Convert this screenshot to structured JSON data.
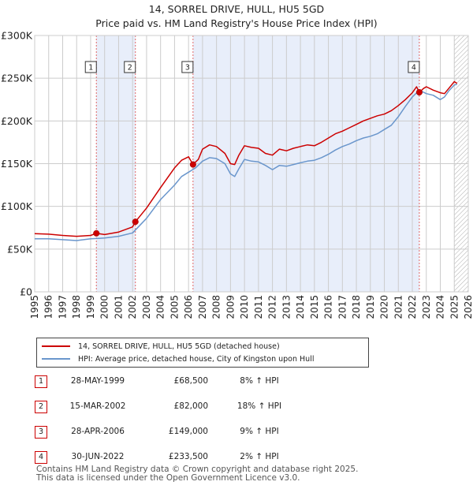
{
  "header": {
    "title": "14, SORREL DRIVE, HULL, HU5 5GD",
    "subtitle": "Price paid vs. HM Land Registry's House Price Index (HPI)"
  },
  "colors": {
    "property_line": "#cc0000",
    "hpi_line": "#6a96cc",
    "shade": "#e8eefa",
    "grid": "#cccccc",
    "marker_line": "#e06666",
    "hatch": "#999999"
  },
  "chart_data": {
    "type": "line",
    "title": "14, SORREL DRIVE, HULL, HU5 5GD",
    "subtitle": "Price paid vs. HM Land Registry's House Price Index (HPI)",
    "xlabel": "",
    "ylabel": "",
    "xlim": [
      1995,
      2026
    ],
    "ylim": [
      0,
      300000
    ],
    "grid": true,
    "x_ticks": [
      1995,
      1996,
      1997,
      1998,
      1999,
      2000,
      2001,
      2002,
      2003,
      2004,
      2005,
      2006,
      2007,
      2008,
      2009,
      2010,
      2011,
      2012,
      2013,
      2014,
      2015,
      2016,
      2017,
      2018,
      2019,
      2020,
      2021,
      2022,
      2023,
      2024,
      2025,
      2026
    ],
    "x_tick_labels": [
      "1995",
      "1996",
      "1997",
      "1998",
      "1999",
      "2000",
      "2001",
      "2002",
      "2003",
      "2004",
      "2005",
      "2006",
      "2007",
      "2008",
      "2009",
      "2010",
      "2011",
      "2012",
      "2013",
      "2014",
      "2015",
      "2016",
      "2017",
      "2018",
      "2019",
      "2020",
      "2021",
      "2022",
      "2023",
      "2024",
      "2025",
      "2026"
    ],
    "y_ticks": [
      0,
      50000,
      100000,
      150000,
      200000,
      250000,
      300000
    ],
    "y_tick_labels": [
      "£0",
      "£50K",
      "£100K",
      "£150K",
      "£200K",
      "£250K",
      "£300K"
    ],
    "shaded_ranges": [
      [
        1999.41,
        2002.2
      ],
      [
        2006.32,
        2022.5
      ]
    ],
    "forecast_start": 2025.0,
    "series": [
      {
        "name": "14, SORREL DRIVE, HULL, HU5 5GD (detached house)",
        "x": [
          1995.0,
          1996.0,
          1997.0,
          1998.0,
          1999.0,
          1999.41,
          2000.0,
          2001.0,
          2002.0,
          2002.2,
          2003.0,
          2004.0,
          2005.0,
          2005.5,
          2006.0,
          2006.32,
          2006.7,
          2007.0,
          2007.5,
          2008.0,
          2008.6,
          2009.0,
          2009.3,
          2009.6,
          2010.0,
          2010.5,
          2011.0,
          2011.5,
          2012.0,
          2012.5,
          2013.0,
          2013.5,
          2014.0,
          2014.5,
          2015.0,
          2015.5,
          2016.0,
          2016.5,
          2017.0,
          2017.5,
          2018.0,
          2018.5,
          2019.0,
          2019.5,
          2020.0,
          2020.5,
          2021.0,
          2021.5,
          2022.0,
          2022.3,
          2022.5,
          2022.8,
          2023.0,
          2023.5,
          2024.0,
          2024.3,
          2024.6,
          2025.0,
          2025.2
        ],
        "values": [
          68000,
          67500,
          66000,
          65000,
          66000,
          68500,
          67000,
          70000,
          76000,
          82000,
          98000,
          122000,
          145000,
          154000,
          158000,
          149000,
          155000,
          167000,
          172000,
          170000,
          162000,
          150000,
          149000,
          160000,
          171000,
          169000,
          168000,
          162000,
          160000,
          167000,
          165000,
          168000,
          170000,
          172000,
          171000,
          175000,
          180000,
          185000,
          188000,
          192000,
          196000,
          200000,
          203000,
          206000,
          208000,
          212000,
          218000,
          225000,
          233000,
          240000,
          233500,
          238000,
          240000,
          236000,
          233000,
          232000,
          238000,
          246000,
          244000
        ]
      },
      {
        "name": "HPI: Average price, detached house, City of Kingston upon Hull",
        "x": [
          1995.0,
          1996.0,
          1997.0,
          1998.0,
          1999.0,
          2000.0,
          2001.0,
          2002.0,
          2003.0,
          2004.0,
          2005.0,
          2005.5,
          2006.0,
          2006.5,
          2007.0,
          2007.5,
          2008.0,
          2008.6,
          2009.0,
          2009.3,
          2009.6,
          2010.0,
          2010.5,
          2011.0,
          2011.5,
          2012.0,
          2012.5,
          2013.0,
          2013.5,
          2014.0,
          2014.5,
          2015.0,
          2015.5,
          2016.0,
          2016.5,
          2017.0,
          2017.5,
          2018.0,
          2018.5,
          2019.0,
          2019.5,
          2020.0,
          2020.5,
          2021.0,
          2021.5,
          2022.0,
          2022.5,
          2023.0,
          2023.5,
          2024.0,
          2024.3,
          2024.6,
          2025.0,
          2025.2
        ],
        "values": [
          62000,
          62000,
          61000,
          60000,
          62000,
          63000,
          65000,
          69000,
          86000,
          108000,
          125000,
          135000,
          140000,
          145000,
          153000,
          157000,
          156000,
          150000,
          138000,
          135000,
          144000,
          155000,
          153000,
          152000,
          148000,
          143000,
          148000,
          147000,
          149000,
          151000,
          153000,
          154000,
          157000,
          161000,
          166000,
          170000,
          173000,
          177000,
          180000,
          182000,
          185000,
          190000,
          195000,
          205000,
          217000,
          228000,
          236000,
          232000,
          230000,
          225000,
          228000,
          235000,
          242000,
          243000
        ]
      }
    ],
    "sales": [
      {
        "label": "1",
        "x": 1999.41,
        "value": 68500
      },
      {
        "label": "2",
        "x": 2002.2,
        "value": 82000
      },
      {
        "label": "3",
        "x": 2006.32,
        "value": 149000
      },
      {
        "label": "4",
        "x": 2022.5,
        "value": 233500
      }
    ]
  },
  "legend": {
    "items": [
      {
        "label": "14, SORREL DRIVE, HULL, HU5 5GD (detached house)"
      },
      {
        "label": "HPI: Average price, detached house, City of Kingston upon Hull"
      }
    ]
  },
  "transactions": [
    {
      "num": "1",
      "date": "28-MAY-1999",
      "price": "£68,500",
      "hpi": "8% ↑ HPI"
    },
    {
      "num": "2",
      "date": "15-MAR-2002",
      "price": "£82,000",
      "hpi": "18% ↑ HPI"
    },
    {
      "num": "3",
      "date": "28-APR-2006",
      "price": "£149,000",
      "hpi": "9% ↑ HPI"
    },
    {
      "num": "4",
      "date": "30-JUN-2022",
      "price": "£233,500",
      "hpi": "2% ↑ HPI"
    }
  ],
  "footer": {
    "line1": "Contains HM Land Registry data © Crown copyright and database right 2025.",
    "line2": "This data is licensed under the Open Government Licence v3.0."
  }
}
